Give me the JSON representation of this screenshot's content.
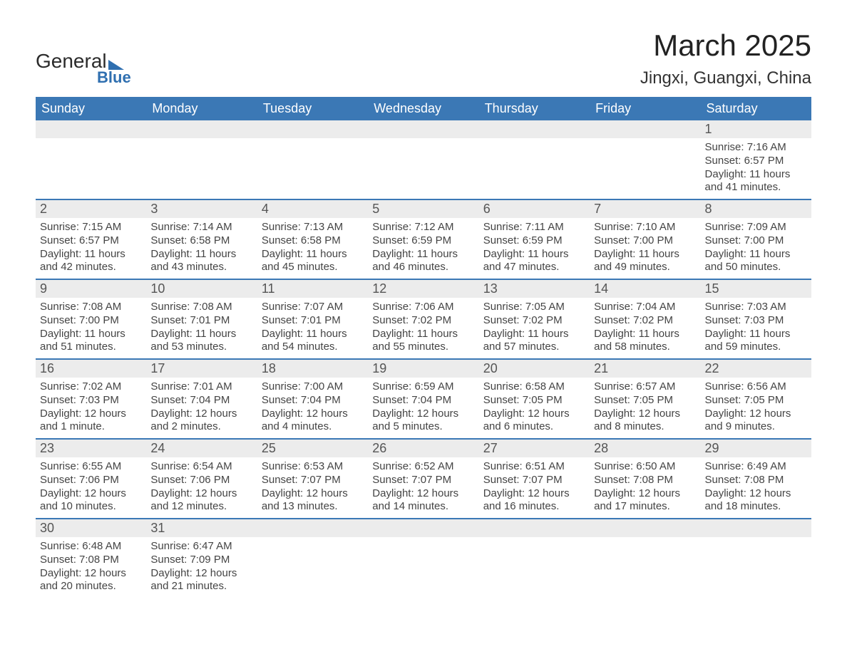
{
  "logo": {
    "line1": "General",
    "line2": "Blue",
    "accent_color": "#2f6fb0"
  },
  "header": {
    "month_title": "March 2025",
    "location": "Jingxi, Guangxi, China",
    "title_fontsize": 42,
    "location_fontsize": 24
  },
  "colors": {
    "header_bg": "#3b78b5",
    "header_text": "#ffffff",
    "daynum_bg": "#ececec",
    "daynum_text": "#555555",
    "body_text": "#444444",
    "row_divider": "#3b78b5",
    "background": "#ffffff"
  },
  "days_of_week": [
    "Sunday",
    "Monday",
    "Tuesday",
    "Wednesday",
    "Thursday",
    "Friday",
    "Saturday"
  ],
  "weeks": [
    [
      {
        "empty": true
      },
      {
        "empty": true
      },
      {
        "empty": true
      },
      {
        "empty": true
      },
      {
        "empty": true
      },
      {
        "empty": true
      },
      {
        "day": "1",
        "sunrise": "Sunrise: 7:16 AM",
        "sunset": "Sunset: 6:57 PM",
        "daylight1": "Daylight: 11 hours",
        "daylight2": "and 41 minutes."
      }
    ],
    [
      {
        "day": "2",
        "sunrise": "Sunrise: 7:15 AM",
        "sunset": "Sunset: 6:57 PM",
        "daylight1": "Daylight: 11 hours",
        "daylight2": "and 42 minutes."
      },
      {
        "day": "3",
        "sunrise": "Sunrise: 7:14 AM",
        "sunset": "Sunset: 6:58 PM",
        "daylight1": "Daylight: 11 hours",
        "daylight2": "and 43 minutes."
      },
      {
        "day": "4",
        "sunrise": "Sunrise: 7:13 AM",
        "sunset": "Sunset: 6:58 PM",
        "daylight1": "Daylight: 11 hours",
        "daylight2": "and 45 minutes."
      },
      {
        "day": "5",
        "sunrise": "Sunrise: 7:12 AM",
        "sunset": "Sunset: 6:59 PM",
        "daylight1": "Daylight: 11 hours",
        "daylight2": "and 46 minutes."
      },
      {
        "day": "6",
        "sunrise": "Sunrise: 7:11 AM",
        "sunset": "Sunset: 6:59 PM",
        "daylight1": "Daylight: 11 hours",
        "daylight2": "and 47 minutes."
      },
      {
        "day": "7",
        "sunrise": "Sunrise: 7:10 AM",
        "sunset": "Sunset: 7:00 PM",
        "daylight1": "Daylight: 11 hours",
        "daylight2": "and 49 minutes."
      },
      {
        "day": "8",
        "sunrise": "Sunrise: 7:09 AM",
        "sunset": "Sunset: 7:00 PM",
        "daylight1": "Daylight: 11 hours",
        "daylight2": "and 50 minutes."
      }
    ],
    [
      {
        "day": "9",
        "sunrise": "Sunrise: 7:08 AM",
        "sunset": "Sunset: 7:00 PM",
        "daylight1": "Daylight: 11 hours",
        "daylight2": "and 51 minutes."
      },
      {
        "day": "10",
        "sunrise": "Sunrise: 7:08 AM",
        "sunset": "Sunset: 7:01 PM",
        "daylight1": "Daylight: 11 hours",
        "daylight2": "and 53 minutes."
      },
      {
        "day": "11",
        "sunrise": "Sunrise: 7:07 AM",
        "sunset": "Sunset: 7:01 PM",
        "daylight1": "Daylight: 11 hours",
        "daylight2": "and 54 minutes."
      },
      {
        "day": "12",
        "sunrise": "Sunrise: 7:06 AM",
        "sunset": "Sunset: 7:02 PM",
        "daylight1": "Daylight: 11 hours",
        "daylight2": "and 55 minutes."
      },
      {
        "day": "13",
        "sunrise": "Sunrise: 7:05 AM",
        "sunset": "Sunset: 7:02 PM",
        "daylight1": "Daylight: 11 hours",
        "daylight2": "and 57 minutes."
      },
      {
        "day": "14",
        "sunrise": "Sunrise: 7:04 AM",
        "sunset": "Sunset: 7:02 PM",
        "daylight1": "Daylight: 11 hours",
        "daylight2": "and 58 minutes."
      },
      {
        "day": "15",
        "sunrise": "Sunrise: 7:03 AM",
        "sunset": "Sunset: 7:03 PM",
        "daylight1": "Daylight: 11 hours",
        "daylight2": "and 59 minutes."
      }
    ],
    [
      {
        "day": "16",
        "sunrise": "Sunrise: 7:02 AM",
        "sunset": "Sunset: 7:03 PM",
        "daylight1": "Daylight: 12 hours",
        "daylight2": "and 1 minute."
      },
      {
        "day": "17",
        "sunrise": "Sunrise: 7:01 AM",
        "sunset": "Sunset: 7:04 PM",
        "daylight1": "Daylight: 12 hours",
        "daylight2": "and 2 minutes."
      },
      {
        "day": "18",
        "sunrise": "Sunrise: 7:00 AM",
        "sunset": "Sunset: 7:04 PM",
        "daylight1": "Daylight: 12 hours",
        "daylight2": "and 4 minutes."
      },
      {
        "day": "19",
        "sunrise": "Sunrise: 6:59 AM",
        "sunset": "Sunset: 7:04 PM",
        "daylight1": "Daylight: 12 hours",
        "daylight2": "and 5 minutes."
      },
      {
        "day": "20",
        "sunrise": "Sunrise: 6:58 AM",
        "sunset": "Sunset: 7:05 PM",
        "daylight1": "Daylight: 12 hours",
        "daylight2": "and 6 minutes."
      },
      {
        "day": "21",
        "sunrise": "Sunrise: 6:57 AM",
        "sunset": "Sunset: 7:05 PM",
        "daylight1": "Daylight: 12 hours",
        "daylight2": "and 8 minutes."
      },
      {
        "day": "22",
        "sunrise": "Sunrise: 6:56 AM",
        "sunset": "Sunset: 7:05 PM",
        "daylight1": "Daylight: 12 hours",
        "daylight2": "and 9 minutes."
      }
    ],
    [
      {
        "day": "23",
        "sunrise": "Sunrise: 6:55 AM",
        "sunset": "Sunset: 7:06 PM",
        "daylight1": "Daylight: 12 hours",
        "daylight2": "and 10 minutes."
      },
      {
        "day": "24",
        "sunrise": "Sunrise: 6:54 AM",
        "sunset": "Sunset: 7:06 PM",
        "daylight1": "Daylight: 12 hours",
        "daylight2": "and 12 minutes."
      },
      {
        "day": "25",
        "sunrise": "Sunrise: 6:53 AM",
        "sunset": "Sunset: 7:07 PM",
        "daylight1": "Daylight: 12 hours",
        "daylight2": "and 13 minutes."
      },
      {
        "day": "26",
        "sunrise": "Sunrise: 6:52 AM",
        "sunset": "Sunset: 7:07 PM",
        "daylight1": "Daylight: 12 hours",
        "daylight2": "and 14 minutes."
      },
      {
        "day": "27",
        "sunrise": "Sunrise: 6:51 AM",
        "sunset": "Sunset: 7:07 PM",
        "daylight1": "Daylight: 12 hours",
        "daylight2": "and 16 minutes."
      },
      {
        "day": "28",
        "sunrise": "Sunrise: 6:50 AM",
        "sunset": "Sunset: 7:08 PM",
        "daylight1": "Daylight: 12 hours",
        "daylight2": "and 17 minutes."
      },
      {
        "day": "29",
        "sunrise": "Sunrise: 6:49 AM",
        "sunset": "Sunset: 7:08 PM",
        "daylight1": "Daylight: 12 hours",
        "daylight2": "and 18 minutes."
      }
    ],
    [
      {
        "day": "30",
        "sunrise": "Sunrise: 6:48 AM",
        "sunset": "Sunset: 7:08 PM",
        "daylight1": "Daylight: 12 hours",
        "daylight2": "and 20 minutes."
      },
      {
        "day": "31",
        "sunrise": "Sunrise: 6:47 AM",
        "sunset": "Sunset: 7:09 PM",
        "daylight1": "Daylight: 12 hours",
        "daylight2": "and 21 minutes."
      },
      {
        "empty": true
      },
      {
        "empty": true
      },
      {
        "empty": true
      },
      {
        "empty": true
      },
      {
        "empty": true
      }
    ]
  ]
}
